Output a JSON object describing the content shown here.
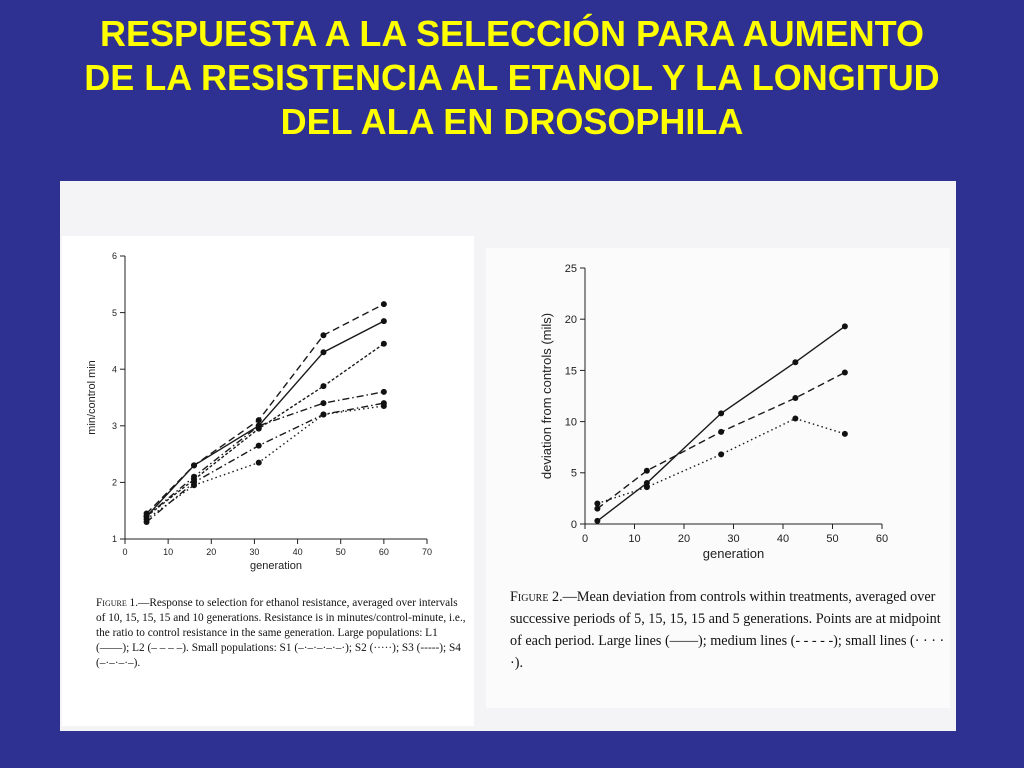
{
  "title_lines": [
    "RESPUESTA A LA SELECCIÓN PARA AUMENTO",
    "DE LA RESISTENCIA AL ETANOL Y LA LONGITUD",
    "DEL ALA  EN DROSOPHILA"
  ],
  "colors": {
    "background": "#2e3192",
    "title": "#ffff00"
  },
  "figure1": {
    "caption_label": "Figure 1.",
    "caption_text": "—Response to selection for ethanol resistance, averaged over intervals of 10, 15, 15, 15 and 10 generations. Resistance is in minutes/control-minute, i.e., the ratio to control resistance in the same generation. Large populations: L1 (——); L2 (– – – –). Small populations: S1 (–·–·–·–·–·); S2 (·····); S3 (-----); S4 (–·–·–·–)."
  },
  "figure2": {
    "caption_label": "Figure 2.",
    "caption_text": "—Mean deviation from controls within treatments, averaged over successive periods of 5, 15, 15, 15 and 5 generations. Points are at midpoint of each period. Large lines (——); medium lines (- - - - -); small lines (· · · · ·)."
  },
  "chart_data": [
    {
      "type": "line",
      "xlabel": "generation",
      "ylabel": "min/control min",
      "xlim": [
        0,
        70
      ],
      "ylim": [
        1,
        6
      ],
      "xticks": [
        0,
        10,
        20,
        30,
        40,
        50,
        60,
        70
      ],
      "yticks": [
        1,
        2,
        3,
        4,
        5,
        6
      ],
      "grid": false,
      "series": [
        {
          "name": "L1",
          "style": "solid",
          "x": [
            5,
            16,
            31,
            46,
            60
          ],
          "y": [
            1.4,
            2.3,
            3.0,
            4.3,
            4.85
          ]
        },
        {
          "name": "L2",
          "style": "dashed",
          "x": [
            5,
            16,
            31,
            46,
            60
          ],
          "y": [
            1.45,
            2.3,
            3.1,
            4.6,
            5.15
          ]
        },
        {
          "name": "S1",
          "style": "dashdot",
          "x": [
            5,
            16,
            31,
            46,
            60
          ],
          "y": [
            1.4,
            2.1,
            3.0,
            3.4,
            3.6
          ]
        },
        {
          "name": "S2",
          "style": "dotted",
          "x": [
            5,
            16,
            31,
            46,
            60
          ],
          "y": [
            1.35,
            1.95,
            2.35,
            3.2,
            3.35
          ]
        },
        {
          "name": "S3",
          "style": "dense",
          "x": [
            5,
            16,
            31,
            46,
            60
          ],
          "y": [
            1.4,
            2.05,
            2.95,
            3.7,
            4.45
          ]
        },
        {
          "name": "S4",
          "style": "dashdot",
          "x": [
            5,
            16,
            31,
            46,
            60
          ],
          "y": [
            1.3,
            2.0,
            2.65,
            3.2,
            3.4
          ]
        }
      ]
    },
    {
      "type": "line",
      "xlabel": "generation",
      "ylabel": "deviation from controls (mils)",
      "xlim": [
        0,
        60
      ],
      "ylim": [
        0,
        25
      ],
      "xticks": [
        0,
        10,
        20,
        30,
        40,
        50,
        60
      ],
      "yticks": [
        0,
        5,
        10,
        15,
        20,
        25
      ],
      "grid": false,
      "series": [
        {
          "name": "Large",
          "style": "solid",
          "x": [
            2.5,
            12.5,
            27.5,
            42.5,
            52.5
          ],
          "y": [
            0.3,
            4.0,
            10.8,
            15.8,
            19.3
          ]
        },
        {
          "name": "medium",
          "style": "dashed",
          "x": [
            2.5,
            12.5,
            27.5,
            42.5,
            52.5
          ],
          "y": [
            1.5,
            5.2,
            9.0,
            12.3,
            14.8
          ]
        },
        {
          "name": "small",
          "style": "dotted",
          "x": [
            2.5,
            12.5,
            27.5,
            42.5,
            52.5
          ],
          "y": [
            2.0,
            3.6,
            6.8,
            10.3,
            8.8
          ]
        }
      ]
    }
  ]
}
